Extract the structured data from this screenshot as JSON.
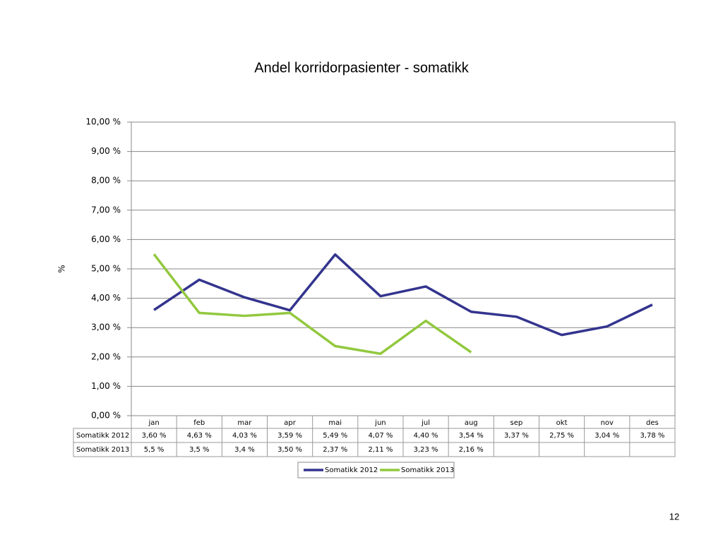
{
  "chart_data": {
    "type": "line",
    "title": "Andel korridorpasienter - somatikk",
    "y_label": "%",
    "categories": [
      "jan",
      "feb",
      "mar",
      "apr",
      "mai",
      "jun",
      "jul",
      "aug",
      "sep",
      "okt",
      "nov",
      "des"
    ],
    "series": [
      {
        "name": "Somatikk 2012",
        "color": "#33348e",
        "values": [
          3.6,
          4.63,
          4.03,
          3.59,
          5.49,
          4.07,
          4.4,
          3.54,
          3.37,
          2.75,
          3.04,
          3.78
        ],
        "value_labels": [
          "3,60 %",
          "4,63 %",
          "4,03 %",
          "3,59 %",
          "5,49 %",
          "4,07 %",
          "4,40 %",
          "3,54 %",
          "3,37 %",
          "2,75 %",
          "3,04 %",
          "3,78 %"
        ]
      },
      {
        "name": "Somatikk 2013",
        "color": "#92c83e",
        "values": [
          5.5,
          3.5,
          3.4,
          3.5,
          2.37,
          2.11,
          3.23,
          2.16,
          null,
          null,
          null,
          null
        ],
        "value_labels": [
          "5,5 %",
          "3,5 %",
          "3,4 %",
          "3,50 %",
          "2,37 %",
          "2,11 %",
          "3,23 %",
          "2,16 %",
          null,
          null,
          null,
          null
        ]
      }
    ],
    "ylim": [
      0,
      10
    ],
    "yticks": [
      {
        "value": 0,
        "label": "0,00 %"
      },
      {
        "value": 1,
        "label": "1,00 %"
      },
      {
        "value": 2,
        "label": "2,00 %"
      },
      {
        "value": 3,
        "label": "3,00 %"
      },
      {
        "value": 4,
        "label": "4,00 %"
      },
      {
        "value": 5,
        "label": "5,00 %"
      },
      {
        "value": 6,
        "label": "6,00 %"
      },
      {
        "value": 7,
        "label": "7,00 %"
      },
      {
        "value": 8,
        "label": "8,00 %"
      },
      {
        "value": 9,
        "label": "9,00 %"
      },
      {
        "value": 10,
        "label": "10,00 %"
      }
    ],
    "grid": true,
    "legend": "bottom"
  },
  "page_number": "12"
}
